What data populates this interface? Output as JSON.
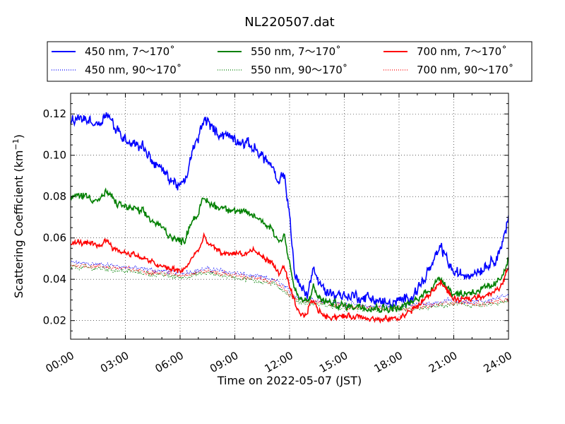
{
  "chart_data": {
    "type": "line",
    "title": "NL220507.dat",
    "xlabel": "Time on 2022-05-07 (JST)",
    "ylabel": "Scattering Coefficient (km",
    "ylabel_sup": "−1",
    "ylabel_close": ")",
    "xlim": [
      0,
      24
    ],
    "ylim": [
      0.011,
      0.13
    ],
    "grid": true,
    "legend_position": "top (above plot, boxed)",
    "x_ticks": [
      {
        "value": 0,
        "label": "00:00"
      },
      {
        "value": 3,
        "label": "03:00"
      },
      {
        "value": 6,
        "label": "06:00"
      },
      {
        "value": 9,
        "label": "09:00"
      },
      {
        "value": 12,
        "label": "12:00"
      },
      {
        "value": 15,
        "label": "15:00"
      },
      {
        "value": 18,
        "label": "18:00"
      },
      {
        "value": 21,
        "label": "21:00"
      },
      {
        "value": 24,
        "label": "24:00"
      }
    ],
    "y_ticks": [
      {
        "value": 0.02,
        "label": "0.02"
      },
      {
        "value": 0.04,
        "label": "0.04"
      },
      {
        "value": 0.06,
        "label": "0.06"
      },
      {
        "value": 0.08,
        "label": "0.08"
      },
      {
        "value": 0.1,
        "label": "0.10"
      },
      {
        "value": 0.12,
        "label": "0.12"
      }
    ],
    "series": [
      {
        "name": "450 nm, 7～170˚",
        "color": "#0000ff",
        "style": "solid",
        "noise": 0.0028,
        "points": [
          [
            0,
            0.116
          ],
          [
            0.5,
            0.118
          ],
          [
            1.0,
            0.117
          ],
          [
            1.5,
            0.115
          ],
          [
            2.0,
            0.121
          ],
          [
            2.5,
            0.112
          ],
          [
            3.0,
            0.108
          ],
          [
            3.5,
            0.106
          ],
          [
            4.0,
            0.104
          ],
          [
            4.5,
            0.097
          ],
          [
            5.0,
            0.093
          ],
          [
            5.5,
            0.088
          ],
          [
            6.0,
            0.085
          ],
          [
            6.3,
            0.087
          ],
          [
            6.6,
            0.1
          ],
          [
            7.0,
            0.108
          ],
          [
            7.3,
            0.118
          ],
          [
            7.6,
            0.115
          ],
          [
            8.0,
            0.111
          ],
          [
            8.5,
            0.11
          ],
          [
            9.0,
            0.108
          ],
          [
            9.5,
            0.106
          ],
          [
            10.0,
            0.104
          ],
          [
            10.5,
            0.1
          ],
          [
            11.0,
            0.095
          ],
          [
            11.4,
            0.085
          ],
          [
            11.7,
            0.092
          ],
          [
            12.0,
            0.07
          ],
          [
            12.3,
            0.042
          ],
          [
            12.6,
            0.036
          ],
          [
            13.0,
            0.033
          ],
          [
            13.3,
            0.046
          ],
          [
            13.6,
            0.038
          ],
          [
            14.0,
            0.034
          ],
          [
            14.5,
            0.033
          ],
          [
            15.0,
            0.032
          ],
          [
            15.5,
            0.032
          ],
          [
            16.0,
            0.031
          ],
          [
            16.5,
            0.031
          ],
          [
            17.0,
            0.029
          ],
          [
            17.5,
            0.028
          ],
          [
            18.0,
            0.029
          ],
          [
            18.5,
            0.031
          ],
          [
            19.0,
            0.035
          ],
          [
            19.5,
            0.042
          ],
          [
            20.0,
            0.05
          ],
          [
            20.3,
            0.056
          ],
          [
            20.6,
            0.05
          ],
          [
            21.0,
            0.043
          ],
          [
            21.5,
            0.042
          ],
          [
            22.0,
            0.043
          ],
          [
            22.5,
            0.045
          ],
          [
            23.0,
            0.048
          ],
          [
            23.5,
            0.053
          ],
          [
            24.0,
            0.069
          ]
        ]
      },
      {
        "name": "450 nm, 90～170˚",
        "color": "#0000ff",
        "style": "dotted",
        "noise": 0.0012,
        "points": [
          [
            0,
            0.048
          ],
          [
            2.0,
            0.047
          ],
          [
            4.0,
            0.045
          ],
          [
            6.0,
            0.043
          ],
          [
            7.5,
            0.045
          ],
          [
            9.0,
            0.043
          ],
          [
            11.0,
            0.04
          ],
          [
            11.5,
            0.038
          ],
          [
            12.0,
            0.034
          ],
          [
            12.5,
            0.031
          ],
          [
            13.5,
            0.03
          ],
          [
            15.0,
            0.028
          ],
          [
            16.5,
            0.027
          ],
          [
            18.0,
            0.027
          ],
          [
            19.5,
            0.028
          ],
          [
            21.0,
            0.03
          ],
          [
            22.5,
            0.029
          ],
          [
            24.0,
            0.032
          ]
        ]
      },
      {
        "name": "550 nm, 7～170˚",
        "color": "#008000",
        "style": "solid",
        "noise": 0.002,
        "points": [
          [
            0,
            0.079
          ],
          [
            0.5,
            0.081
          ],
          [
            1.0,
            0.08
          ],
          [
            1.5,
            0.078
          ],
          [
            2.0,
            0.082
          ],
          [
            2.5,
            0.077
          ],
          [
            3.0,
            0.075
          ],
          [
            3.5,
            0.074
          ],
          [
            4.0,
            0.072
          ],
          [
            4.5,
            0.068
          ],
          [
            5.0,
            0.065
          ],
          [
            5.5,
            0.061
          ],
          [
            6.0,
            0.058
          ],
          [
            6.3,
            0.06
          ],
          [
            6.6,
            0.068
          ],
          [
            7.0,
            0.072
          ],
          [
            7.3,
            0.079
          ],
          [
            7.6,
            0.077
          ],
          [
            8.0,
            0.075
          ],
          [
            8.5,
            0.075
          ],
          [
            9.0,
            0.073
          ],
          [
            9.5,
            0.072
          ],
          [
            10.0,
            0.071
          ],
          [
            10.5,
            0.068
          ],
          [
            11.0,
            0.065
          ],
          [
            11.4,
            0.058
          ],
          [
            11.7,
            0.062
          ],
          [
            12.0,
            0.048
          ],
          [
            12.3,
            0.034
          ],
          [
            12.6,
            0.03
          ],
          [
            13.0,
            0.029
          ],
          [
            13.3,
            0.036
          ],
          [
            13.6,
            0.031
          ],
          [
            14.0,
            0.029
          ],
          [
            15.0,
            0.027
          ],
          [
            16.0,
            0.027
          ],
          [
            17.0,
            0.026
          ],
          [
            18.0,
            0.026
          ],
          [
            18.5,
            0.028
          ],
          [
            19.0,
            0.03
          ],
          [
            19.5,
            0.034
          ],
          [
            20.0,
            0.038
          ],
          [
            20.3,
            0.041
          ],
          [
            20.6,
            0.037
          ],
          [
            21.0,
            0.033
          ],
          [
            21.5,
            0.033
          ],
          [
            22.0,
            0.034
          ],
          [
            22.5,
            0.035
          ],
          [
            23.0,
            0.036
          ],
          [
            23.5,
            0.039
          ],
          [
            24.0,
            0.05
          ]
        ]
      },
      {
        "name": "550 nm, 90～170˚",
        "color": "#008000",
        "style": "dotted",
        "noise": 0.0012,
        "points": [
          [
            0,
            0.046
          ],
          [
            2.0,
            0.045
          ],
          [
            4.0,
            0.043
          ],
          [
            6.0,
            0.041
          ],
          [
            7.5,
            0.043
          ],
          [
            9.0,
            0.041
          ],
          [
            11.0,
            0.038
          ],
          [
            11.5,
            0.036
          ],
          [
            12.0,
            0.032
          ],
          [
            12.5,
            0.029
          ],
          [
            13.5,
            0.028
          ],
          [
            15.0,
            0.026
          ],
          [
            16.5,
            0.025
          ],
          [
            18.0,
            0.025
          ],
          [
            19.5,
            0.026
          ],
          [
            21.0,
            0.028
          ],
          [
            22.5,
            0.027
          ],
          [
            24.0,
            0.029
          ]
        ]
      },
      {
        "name": "700 nm, 7～170˚",
        "color": "#ff0000",
        "style": "solid",
        "noise": 0.0015,
        "points": [
          [
            0,
            0.057
          ],
          [
            0.5,
            0.058
          ],
          [
            1.0,
            0.057
          ],
          [
            1.5,
            0.056
          ],
          [
            2.0,
            0.059
          ],
          [
            2.5,
            0.054
          ],
          [
            3.0,
            0.053
          ],
          [
            3.5,
            0.052
          ],
          [
            4.0,
            0.05
          ],
          [
            4.5,
            0.048
          ],
          [
            5.0,
            0.046
          ],
          [
            5.5,
            0.045
          ],
          [
            6.0,
            0.044
          ],
          [
            6.3,
            0.045
          ],
          [
            6.6,
            0.05
          ],
          [
            7.0,
            0.054
          ],
          [
            7.3,
            0.06
          ],
          [
            7.6,
            0.057
          ],
          [
            8.0,
            0.054
          ],
          [
            8.5,
            0.052
          ],
          [
            9.0,
            0.053
          ],
          [
            9.5,
            0.052
          ],
          [
            10.0,
            0.054
          ],
          [
            10.5,
            0.051
          ],
          [
            11.0,
            0.048
          ],
          [
            11.4,
            0.043
          ],
          [
            11.7,
            0.046
          ],
          [
            12.0,
            0.036
          ],
          [
            12.3,
            0.028
          ],
          [
            12.6,
            0.022
          ],
          [
            12.9,
            0.023
          ],
          [
            13.2,
            0.03
          ],
          [
            13.6,
            0.025
          ],
          [
            14.0,
            0.022
          ],
          [
            15.0,
            0.022
          ],
          [
            16.0,
            0.022
          ],
          [
            17.0,
            0.02
          ],
          [
            17.5,
            0.021
          ],
          [
            18.0,
            0.021
          ],
          [
            18.5,
            0.024
          ],
          [
            19.0,
            0.027
          ],
          [
            19.5,
            0.031
          ],
          [
            20.0,
            0.036
          ],
          [
            20.3,
            0.039
          ],
          [
            20.6,
            0.035
          ],
          [
            21.0,
            0.03
          ],
          [
            21.5,
            0.03
          ],
          [
            22.0,
            0.031
          ],
          [
            22.5,
            0.032
          ],
          [
            23.0,
            0.033
          ],
          [
            23.5,
            0.035
          ],
          [
            24.0,
            0.046
          ]
        ]
      },
      {
        "name": "700 nm, 90～170˚",
        "color": "#ff0000",
        "style": "dotted",
        "noise": 0.0012,
        "points": [
          [
            0,
            0.047
          ],
          [
            2.0,
            0.046
          ],
          [
            4.0,
            0.044
          ],
          [
            6.0,
            0.042
          ],
          [
            7.5,
            0.044
          ],
          [
            9.0,
            0.042
          ],
          [
            11.0,
            0.039
          ],
          [
            11.5,
            0.037
          ],
          [
            12.0,
            0.033
          ],
          [
            12.5,
            0.03
          ],
          [
            13.5,
            0.029
          ],
          [
            15.0,
            0.027
          ],
          [
            16.5,
            0.026
          ],
          [
            18.0,
            0.026
          ],
          [
            19.5,
            0.027
          ],
          [
            21.0,
            0.029
          ],
          [
            22.5,
            0.028
          ],
          [
            24.0,
            0.03
          ]
        ]
      }
    ]
  }
}
